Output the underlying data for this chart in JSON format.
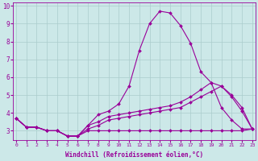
{
  "xlabel": "Windchill (Refroidissement éolien,°C)",
  "ylabel": "",
  "background_color": "#cce8e8",
  "line_color": "#990099",
  "grid_color": "#aacccc",
  "xmin": 0,
  "xmax": 23,
  "ymin": 2.5,
  "ymax": 10.2,
  "series": [
    {
      "x": [
        0,
        1,
        2,
        3,
        4,
        5,
        6,
        7,
        8,
        9,
        10,
        11,
        12,
        13,
        14,
        15,
        16,
        17,
        18,
        19,
        20,
        21,
        22,
        23
      ],
      "y": [
        3.7,
        3.2,
        3.2,
        3.0,
        3.0,
        2.7,
        2.7,
        3.3,
        3.9,
        4.1,
        4.5,
        5.5,
        7.5,
        9.0,
        9.7,
        9.6,
        8.9,
        7.9,
        6.3,
        5.7,
        4.3,
        3.6,
        3.1,
        3.1
      ],
      "marker": "D",
      "markersize": 2.0
    },
    {
      "x": [
        0,
        1,
        2,
        3,
        4,
        5,
        6,
        7,
        8,
        9,
        10,
        11,
        12,
        13,
        14,
        15,
        16,
        17,
        18,
        19,
        20,
        21,
        22,
        23
      ],
      "y": [
        3.7,
        3.2,
        3.2,
        3.0,
        3.0,
        2.7,
        2.7,
        3.3,
        3.5,
        3.8,
        3.9,
        4.0,
        4.1,
        4.2,
        4.3,
        4.4,
        4.6,
        4.9,
        5.3,
        5.7,
        5.5,
        5.0,
        4.3,
        3.1
      ],
      "marker": "D",
      "markersize": 2.0
    },
    {
      "x": [
        0,
        1,
        2,
        3,
        4,
        5,
        6,
        7,
        8,
        9,
        10,
        11,
        12,
        13,
        14,
        15,
        16,
        17,
        18,
        19,
        20,
        21,
        22,
        23
      ],
      "y": [
        3.7,
        3.2,
        3.2,
        3.0,
        3.0,
        2.7,
        2.7,
        3.0,
        3.0,
        3.0,
        3.0,
        3.0,
        3.0,
        3.0,
        3.0,
        3.0,
        3.0,
        3.0,
        3.0,
        3.0,
        3.0,
        3.0,
        3.0,
        3.1
      ],
      "marker": "D",
      "markersize": 2.0
    },
    {
      "x": [
        0,
        1,
        2,
        3,
        4,
        5,
        6,
        7,
        8,
        9,
        10,
        11,
        12,
        13,
        14,
        15,
        16,
        17,
        18,
        19,
        20,
        21,
        22,
        23
      ],
      "y": [
        3.7,
        3.2,
        3.2,
        3.0,
        3.0,
        2.7,
        2.7,
        3.1,
        3.3,
        3.6,
        3.7,
        3.8,
        3.9,
        4.0,
        4.1,
        4.2,
        4.3,
        4.6,
        4.9,
        5.2,
        5.5,
        4.9,
        4.1,
        3.1
      ],
      "marker": "D",
      "markersize": 2.0
    }
  ],
  "yticks": [
    3,
    4,
    5,
    6,
    7,
    8,
    9,
    10
  ],
  "xticks": [
    0,
    1,
    2,
    3,
    4,
    5,
    6,
    7,
    8,
    9,
    10,
    11,
    12,
    13,
    14,
    15,
    16,
    17,
    18,
    19,
    20,
    21,
    22,
    23
  ],
  "tick_fontsize_x": 4.5,
  "tick_fontsize_y": 5.5,
  "xlabel_fontsize": 5.5,
  "linewidth": 0.8
}
